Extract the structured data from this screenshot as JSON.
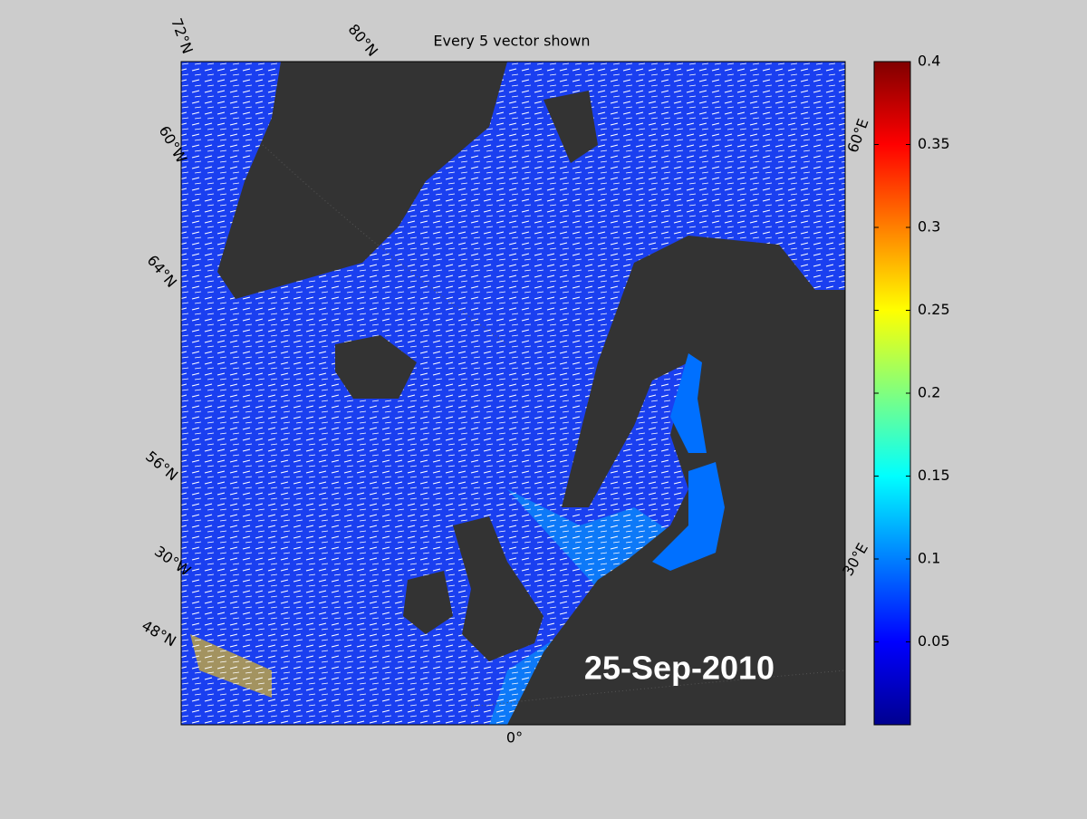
{
  "title": "Every 5 vector shown",
  "date_label": "25-Sep-2010",
  "graticule_labels": [
    {
      "text": "72°N"
    },
    {
      "text": "80°N"
    },
    {
      "text": "60°W"
    },
    {
      "text": "64°N"
    },
    {
      "text": "56°N"
    },
    {
      "text": "30°W"
    },
    {
      "text": "48°N"
    },
    {
      "text": "0°"
    },
    {
      "text": "30°E"
    },
    {
      "text": "60°E"
    }
  ],
  "colorbar": {
    "lim": [
      0,
      0.4
    ],
    "ticks": [
      0.05,
      0.1,
      0.15,
      0.2,
      0.25,
      0.3,
      0.35,
      0.4
    ]
  }
}
